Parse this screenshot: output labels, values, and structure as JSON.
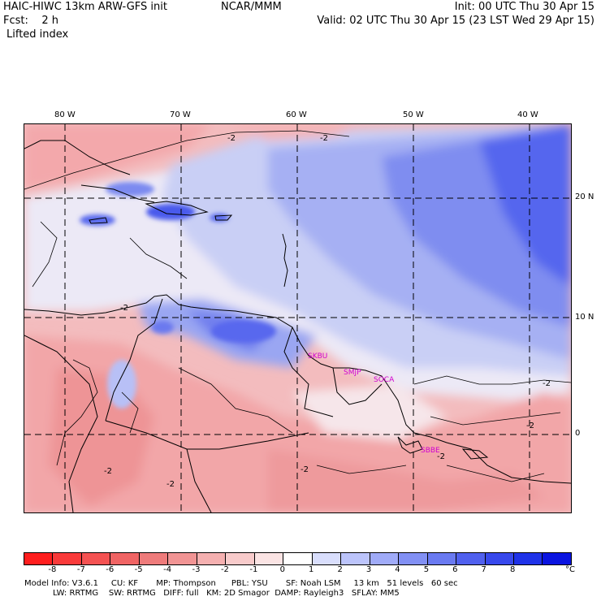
{
  "header": {
    "model": "HAIC-HIWC 13km ARW-GFS init",
    "org": "NCAR/MMM",
    "init": "Init: 00 UTC Thu 30 Apr 15",
    "fcst": "Fcst:    2 h",
    "valid": "Valid: 02 UTC Thu 30 Apr 15 (23 LST Wed 29 Apr 15)",
    "field": "Lifted index"
  },
  "map": {
    "lon_labels": [
      "80 W",
      "70 W",
      "60 W",
      "50 W",
      "40 W"
    ],
    "lat_labels": [
      "20 N",
      "10 N",
      "0"
    ],
    "station_labels": [
      "SKBU",
      "SMJP",
      "SOCA",
      "SBBE"
    ],
    "contour_labels": [
      "-2",
      "-2",
      "-2",
      "-2",
      "-2",
      "-2",
      "-2",
      "-2",
      "-2"
    ]
  },
  "colorbar": {
    "unit": "°C",
    "labels": [
      "-8",
      "-7",
      "-6",
      "-5",
      "-4",
      "-3",
      "-2",
      "-1",
      "0",
      "1",
      "2",
      "3",
      "4",
      "5",
      "6",
      "7",
      "8"
    ],
    "colors": [
      "#ff1e1e",
      "#f93a3a",
      "#f45252",
      "#f06464",
      "#ee7b7b",
      "#f19494",
      "#f5b0b0",
      "#f8cbcb",
      "#fbe4e4",
      "#ffffff",
      "#d9defc",
      "#bcc4fb",
      "#a0abf8",
      "#8290f4",
      "#6a7af1",
      "#5060ee",
      "#3748ec",
      "#1f32e8",
      "#0a14e0"
    ]
  },
  "footer": {
    "line1": "Model Info: V3.6.1     CU: KF       MP: Thompson      PBL: YSU       SF: Noah LSM     13 km   51 levels   60 sec",
    "line2": "           LW: RRTMG    SW: RRTMG   DIFF: full   KM: 2D Smagor  DAMP: Rayleigh3   SFLAY: MM5"
  }
}
